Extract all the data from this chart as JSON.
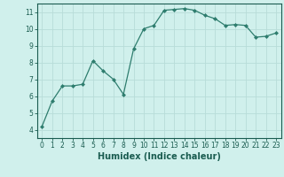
{
  "x": [
    0,
    1,
    2,
    3,
    4,
    5,
    6,
    7,
    8,
    9,
    10,
    11,
    12,
    13,
    14,
    15,
    16,
    17,
    18,
    19,
    20,
    21,
    22,
    23
  ],
  "y": [
    4.2,
    5.7,
    6.6,
    6.6,
    6.7,
    8.1,
    7.5,
    7.0,
    6.1,
    8.8,
    10.0,
    10.2,
    11.1,
    11.15,
    11.2,
    11.1,
    10.8,
    10.6,
    10.2,
    10.25,
    10.2,
    9.5,
    9.55,
    9.75
  ],
  "line_color": "#2e7d6e",
  "marker": "D",
  "marker_size": 2.0,
  "bg_color": "#d0f0ec",
  "grid_color": "#b8dcd8",
  "xlabel": "Humidex (Indice chaleur)",
  "xlim": [
    -0.5,
    23.5
  ],
  "ylim": [
    3.5,
    11.5
  ],
  "yticks": [
    4,
    5,
    6,
    7,
    8,
    9,
    10,
    11
  ],
  "xticks": [
    0,
    1,
    2,
    3,
    4,
    5,
    6,
    7,
    8,
    9,
    10,
    11,
    12,
    13,
    14,
    15,
    16,
    17,
    18,
    19,
    20,
    21,
    22,
    23
  ],
  "tick_labelsize": 5.5,
  "xlabel_fontsize": 7,
  "axis_color": "#1a5c50",
  "spine_color": "#1a5c50"
}
